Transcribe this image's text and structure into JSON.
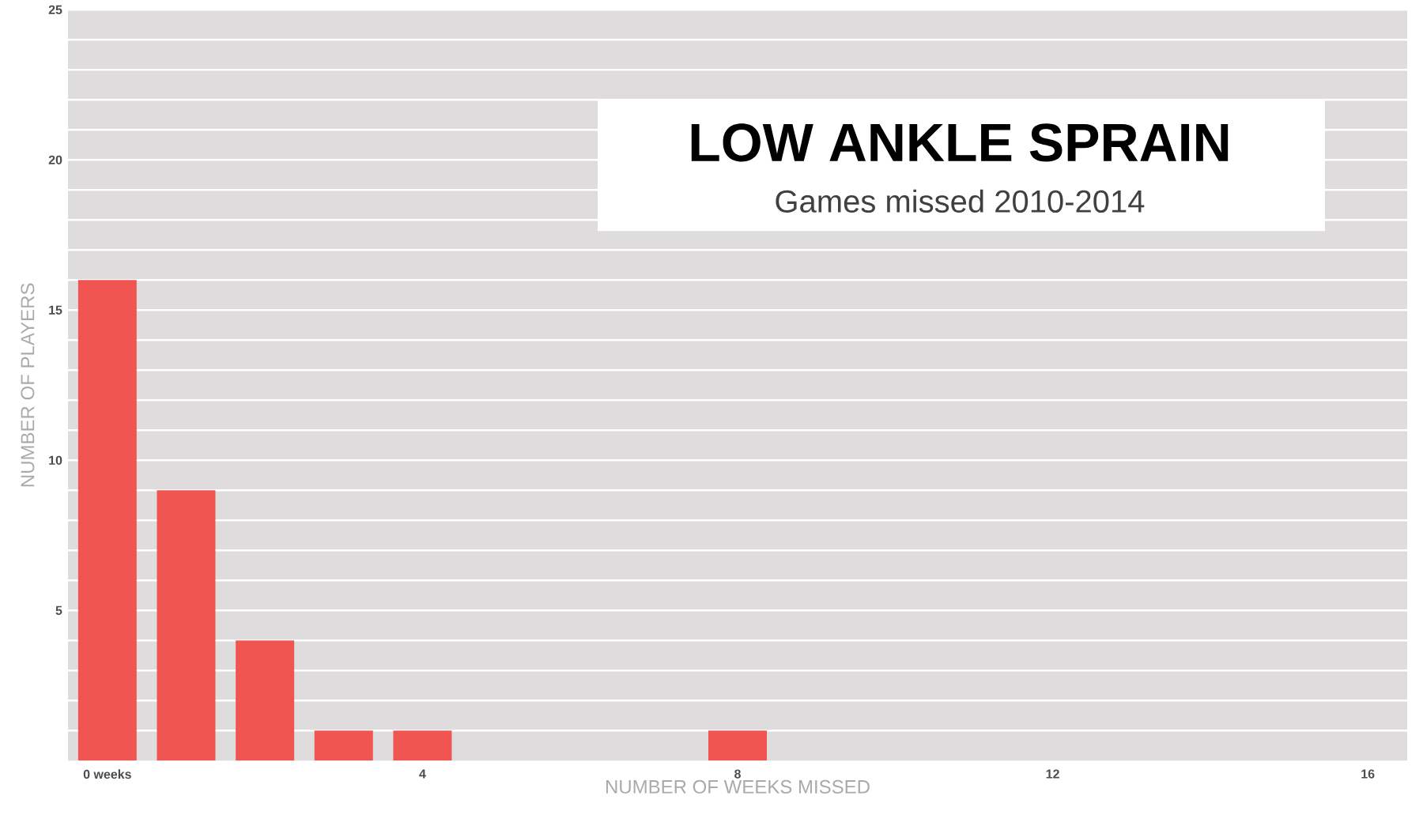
{
  "chart_data": {
    "type": "bar",
    "title": "LOW ANKLE SPRAIN",
    "subtitle": "Games missed 2010-2014",
    "xlabel": "NUMBER OF WEEKS MISSED",
    "ylabel": "NUMBER OF PLAYERS",
    "x": [
      0,
      1,
      2,
      3,
      4,
      5,
      6,
      7,
      8
    ],
    "values": [
      16,
      9,
      4,
      1,
      1,
      0,
      0,
      0,
      1
    ],
    "color": "#f05552",
    "xlim": [
      -0.5,
      16.5
    ],
    "ylim": [
      0,
      25
    ],
    "xticks": [
      {
        "value": 0,
        "label": "0 weeks"
      },
      4,
      8,
      12,
      16
    ],
    "yticks": [
      {
        "value": 1,
        "label": null
      },
      {
        "value": 2,
        "label": null
      },
      {
        "value": 3,
        "label": null
      },
      {
        "value": 4,
        "label": null
      },
      5,
      {
        "value": 6,
        "label": null
      },
      {
        "value": 7,
        "label": null
      },
      {
        "value": 8,
        "label": null
      },
      {
        "value": 9,
        "label": null
      },
      10,
      {
        "value": 11,
        "label": null
      },
      {
        "value": 12,
        "label": null
      },
      {
        "value": 13,
        "label": null
      },
      {
        "value": 14,
        "label": null
      },
      15,
      {
        "value": 16,
        "label": null
      },
      {
        "value": 17,
        "label": null
      },
      {
        "value": 18,
        "label": null
      },
      {
        "value": 19,
        "label": null
      },
      20,
      {
        "value": 21,
        "label": null
      },
      {
        "value": 22,
        "label": null
      },
      {
        "value": 23,
        "label": null
      },
      {
        "value": 24,
        "label": null
      },
      25
    ],
    "grid": "y"
  }
}
